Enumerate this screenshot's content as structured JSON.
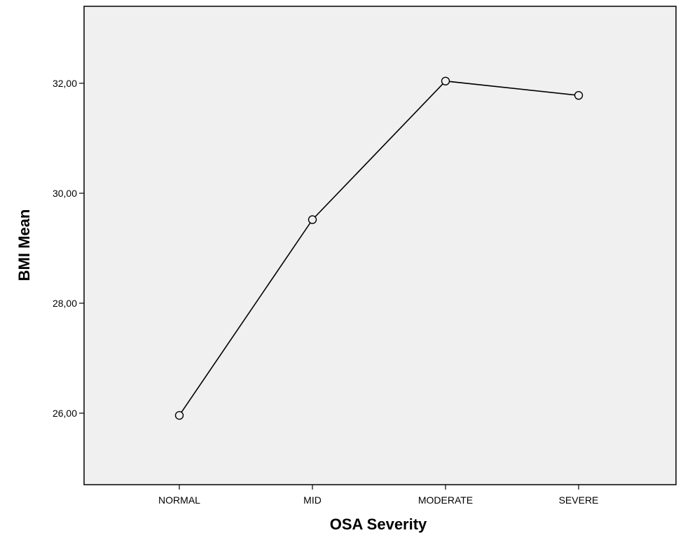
{
  "chart_data": {
    "type": "line",
    "title": "",
    "xlabel": "OSA Severity",
    "ylabel": "BMI Mean",
    "categories": [
      "NORMAL",
      "MID",
      "MODERATE",
      "SEVERE"
    ],
    "series": [
      {
        "values": [
          25.96,
          29.52,
          32.04,
          31.78
        ]
      }
    ],
    "ylim": [
      24.7,
      33.4
    ],
    "yticks": [
      26,
      28,
      30,
      32
    ],
    "ytick_labels": [
      "26,00",
      "28,00",
      "30,00",
      "32,00"
    ],
    "grid": false,
    "legend": "none",
    "colors": {
      "plot_background": "#f0f0f0",
      "line": "#000000",
      "marker_fill": "#f0f0f0"
    },
    "marker": "open-circle"
  }
}
